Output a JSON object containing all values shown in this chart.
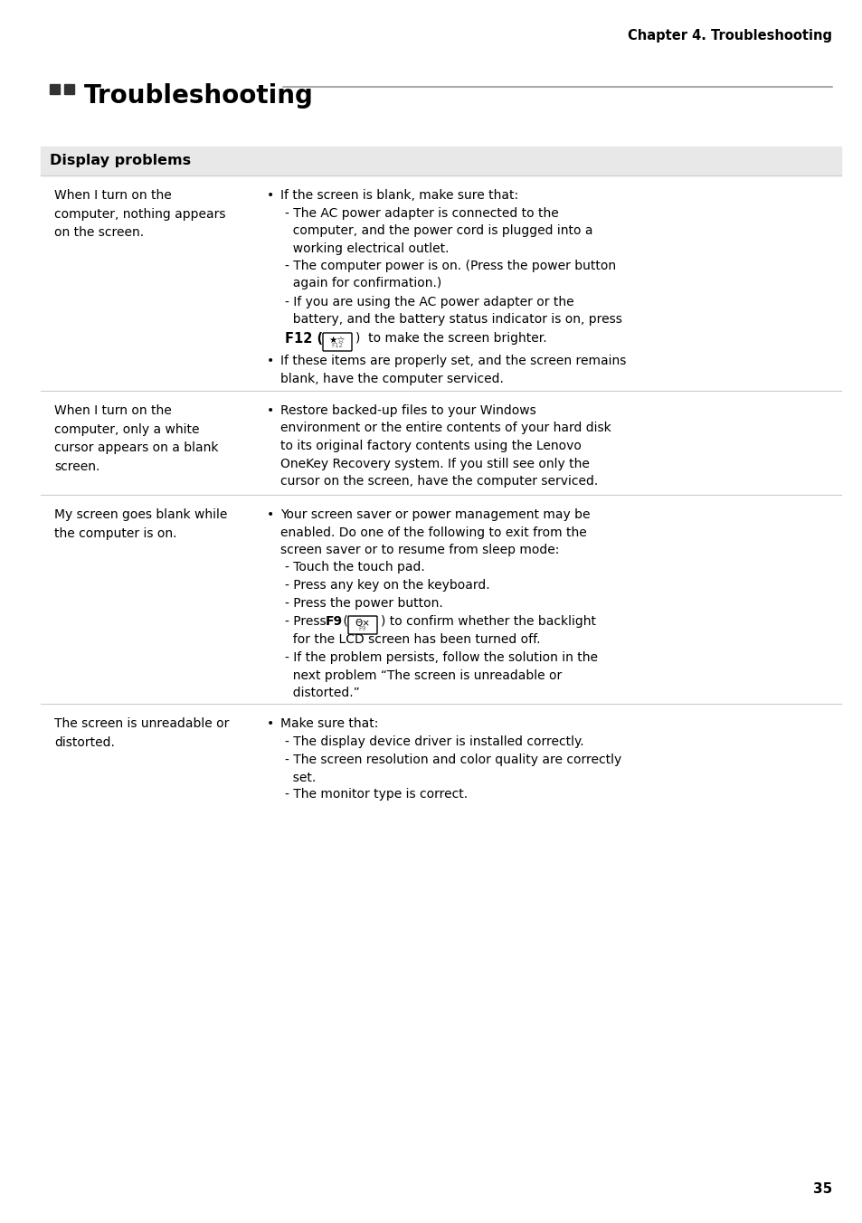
{
  "chapter_header": "Chapter 4. Troubleshooting",
  "page_title": "Troubleshooting",
  "section_header": "Display problems",
  "background_color": "#ffffff",
  "section_bg_color": "#e8e8e8",
  "page_number": "35",
  "bullet_color": "#000000",
  "icon_color": "#555555",
  "rows": [
    {
      "problem": "When I turn on the\ncomputer, nothing appears\non the screen.",
      "solutions": [
        {
          "type": "bullet",
          "text": "If the screen is blank, make sure that:"
        },
        {
          "type": "dash_indent",
          "text": "- The AC power adapter is connected to the\n  computer, and the power cord is plugged into a\n  working electrical outlet."
        },
        {
          "type": "dash_indent",
          "text": "- The computer power is on. (Press the power button\n  again for confirmation.)"
        },
        {
          "type": "dash_indent",
          "text": "- If you are using the AC power adapter or the\n  battery, and the battery status indicator is on, press\n  F12 ("
        },
        {
          "type": "key_f12",
          "text": ""
        },
        {
          "type": "dash_indent_cont",
          "text": ")  to make the screen brighter."
        },
        {
          "type": "bullet",
          "text": "If these items are properly set, and the screen remains\nblank, have the computer serviced."
        }
      ]
    },
    {
      "problem": "When I turn on the\ncomputer, only a white\ncursor appears on a blank\nscreen.",
      "solutions": [
        {
          "type": "bullet",
          "text": "Restore backed-up files to your Windows\nenvironment or the entire contents of your hard disk\nto its original factory contents using the Lenovo\nOneKey Recovery system. If you still see only the\ncursor on the screen, have the computer serviced."
        }
      ]
    },
    {
      "problem": "My screen goes blank while\nthe computer is on.",
      "solutions": [
        {
          "type": "bullet",
          "text": "Your screen saver or power management may be\nenabled. Do one of the following to exit from the\nscreen saver or to resume from sleep mode:"
        },
        {
          "type": "dash_indent",
          "text": "- Touch the touch pad."
        },
        {
          "type": "dash_indent",
          "text": "- Press any key on the keyboard."
        },
        {
          "type": "dash_indent",
          "text": "- Press the power button."
        },
        {
          "type": "dash_f9",
          "text": "- Press F9 ("
        },
        {
          "type": "dash_indent",
          "text": ") to confirm whether the backlight\n  for the LCD screen has been turned off."
        },
        {
          "type": "dash_indent",
          "text": "- If the problem persists, follow the solution in the\n  next problem “The screen is unreadable or\n  distorted.”"
        }
      ]
    },
    {
      "problem": "The screen is unreadable or\ndistorted.",
      "solutions": [
        {
          "type": "bullet",
          "text": "Make sure that:"
        },
        {
          "type": "dash_indent",
          "text": "- The display device driver is installed correctly."
        },
        {
          "type": "dash_indent",
          "text": "- The screen resolution and color quality are correctly\n  set."
        },
        {
          "type": "dash_indent",
          "text": "- The monitor type is correct."
        }
      ]
    }
  ]
}
